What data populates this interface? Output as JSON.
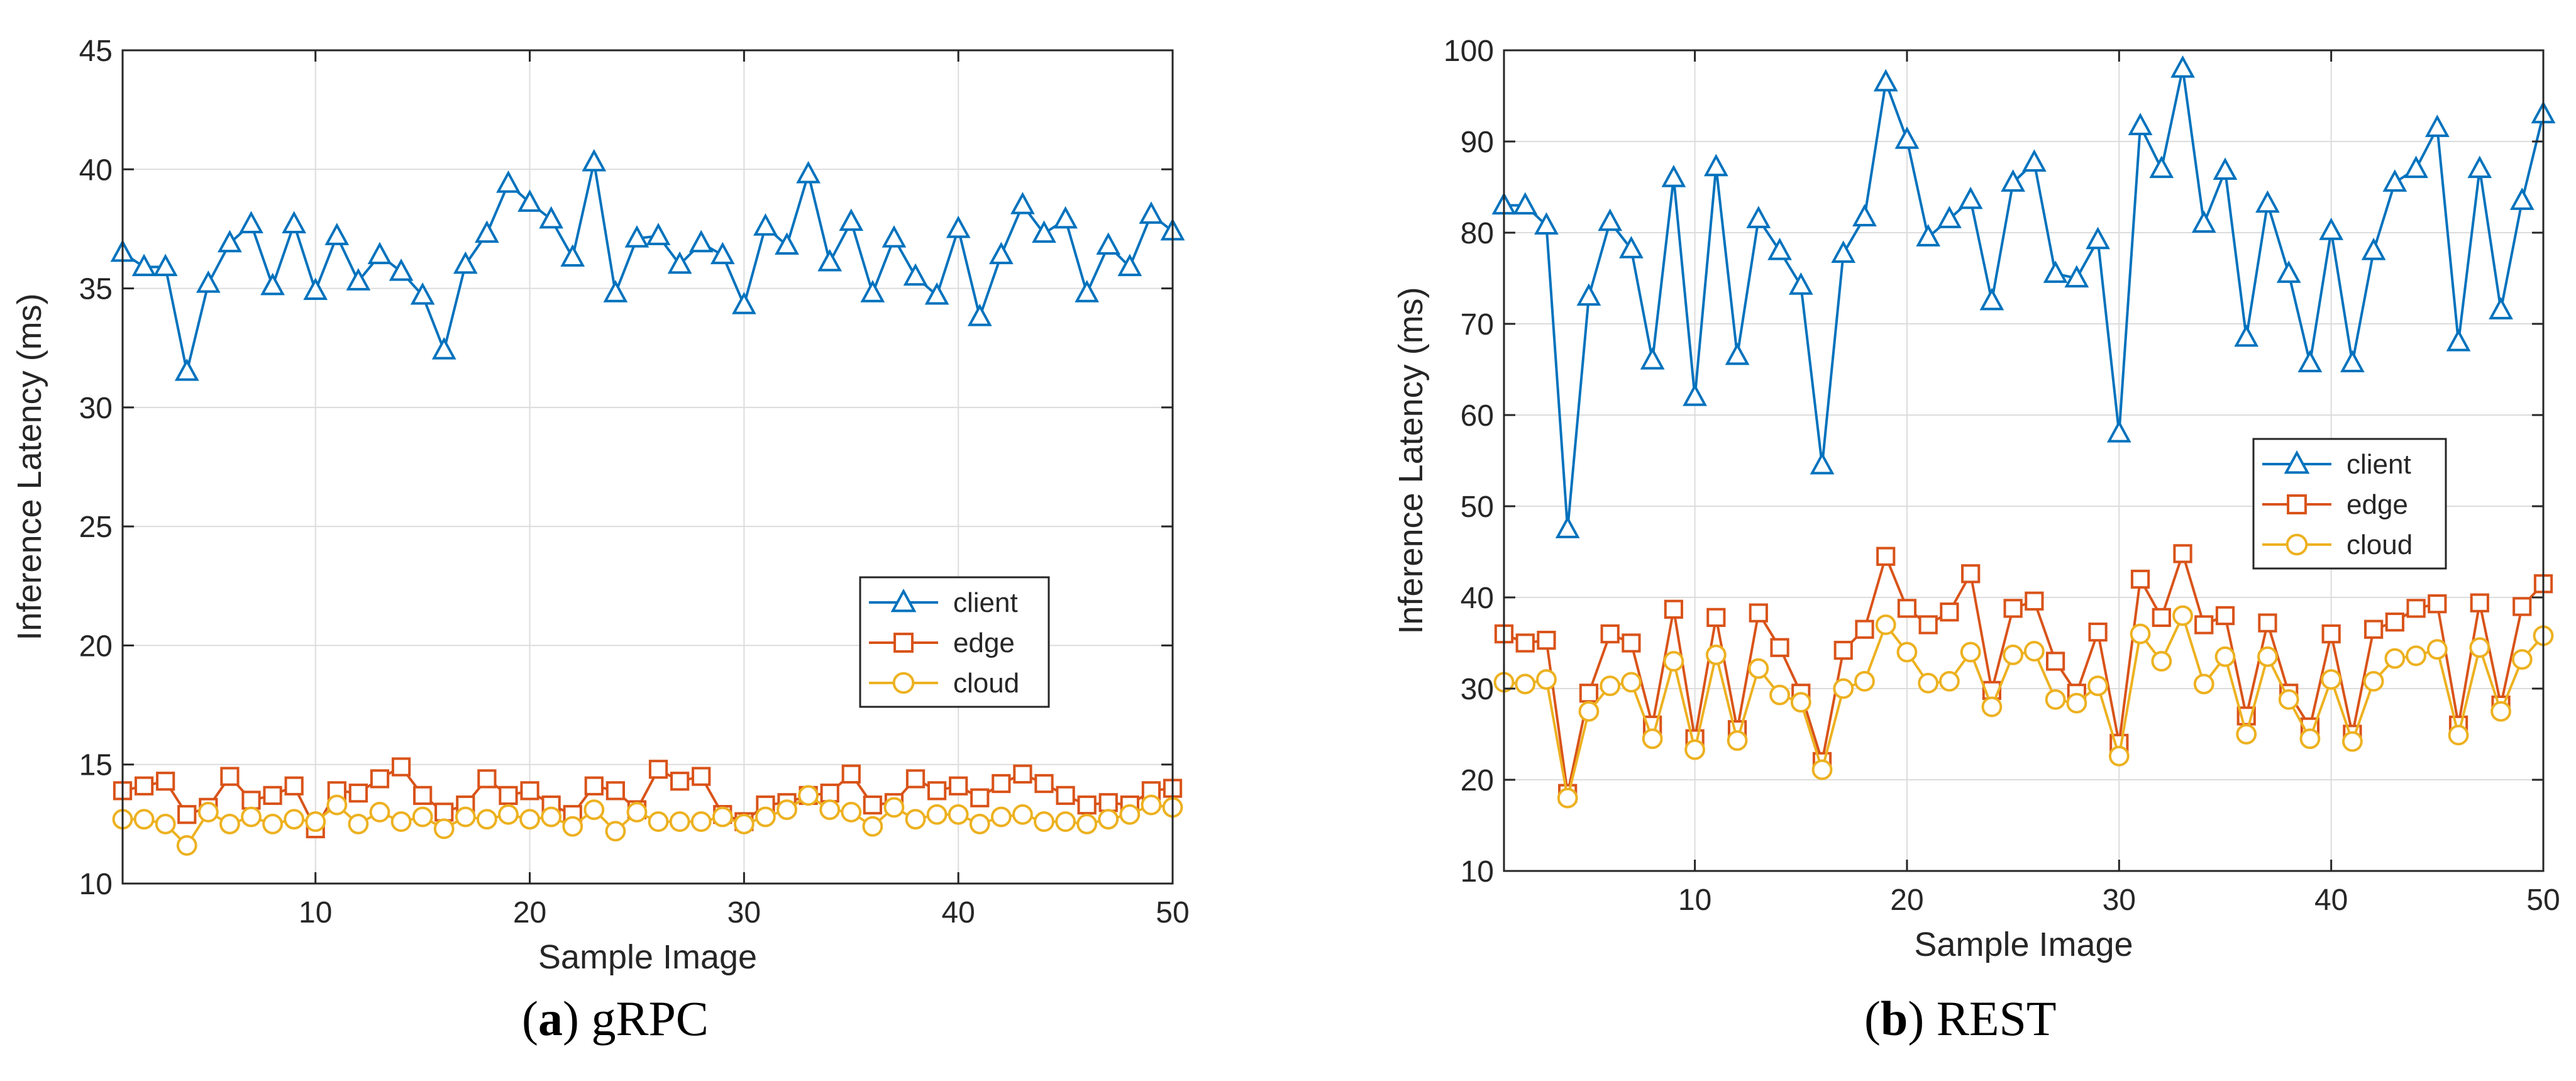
{
  "chart_data": [
    {
      "type": "line",
      "caption_letter": "a",
      "caption_text": "gRPC",
      "xlabel": "Sample Image",
      "ylabel": "Inference Latency (ms)",
      "xlim": [
        1,
        50
      ],
      "ylim": [
        10,
        45
      ],
      "xticks": [
        10,
        20,
        30,
        40,
        50
      ],
      "yticks": [
        10,
        15,
        20,
        25,
        30,
        35,
        40,
        45
      ],
      "grid": true,
      "legend_position": "lower-right",
      "x": [
        1,
        2,
        3,
        4,
        5,
        6,
        7,
        8,
        9,
        10,
        11,
        12,
        13,
        14,
        15,
        16,
        17,
        18,
        19,
        20,
        21,
        22,
        23,
        24,
        25,
        26,
        27,
        28,
        29,
        30,
        31,
        32,
        33,
        34,
        35,
        36,
        37,
        38,
        39,
        40,
        41,
        42,
        43,
        44,
        45,
        46,
        47,
        48,
        49,
        50
      ],
      "series": [
        {
          "name": "client",
          "color": "#0072BD",
          "marker": "triangle",
          "values": [
            36.5,
            35.9,
            35.9,
            31.5,
            35.2,
            36.9,
            37.7,
            35.1,
            37.7,
            34.9,
            37.2,
            35.3,
            36.4,
            35.7,
            34.7,
            32.4,
            36.0,
            37.3,
            39.4,
            38.6,
            37.9,
            36.3,
            40.3,
            34.8,
            37.1,
            37.2,
            36.0,
            36.9,
            36.4,
            34.3,
            37.6,
            36.8,
            39.8,
            36.1,
            37.8,
            34.8,
            37.1,
            35.5,
            34.7,
            37.5,
            33.8,
            36.4,
            38.5,
            37.3,
            37.9,
            34.8,
            36.8,
            35.9,
            38.1,
            37.4
          ]
        },
        {
          "name": "edge",
          "color": "#D95319",
          "marker": "square",
          "values": [
            13.9,
            14.1,
            14.3,
            12.9,
            13.2,
            14.5,
            13.5,
            13.7,
            14.1,
            12.3,
            13.9,
            13.8,
            14.4,
            14.9,
            13.7,
            13.0,
            13.3,
            14.4,
            13.7,
            13.9,
            13.3,
            12.9,
            14.1,
            13.9,
            13.1,
            14.8,
            14.3,
            14.5,
            12.9,
            12.6,
            13.3,
            13.4,
            13.7,
            13.8,
            14.6,
            13.3,
            13.4,
            14.4,
            13.9,
            14.1,
            13.6,
            14.2,
            14.6,
            14.2,
            13.7,
            13.3,
            13.4,
            13.3,
            13.9,
            14.0
          ]
        },
        {
          "name": "cloud",
          "color": "#EDB120",
          "marker": "circle",
          "values": [
            12.7,
            12.7,
            12.5,
            11.6,
            13.0,
            12.5,
            12.8,
            12.5,
            12.7,
            12.6,
            13.3,
            12.5,
            13.0,
            12.6,
            12.8,
            12.3,
            12.8,
            12.7,
            12.9,
            12.7,
            12.8,
            12.4,
            13.1,
            12.2,
            13.0,
            12.6,
            12.6,
            12.6,
            12.8,
            12.5,
            12.8,
            13.1,
            13.7,
            13.1,
            13.0,
            12.4,
            13.2,
            12.7,
            12.9,
            12.9,
            12.5,
            12.8,
            12.9,
            12.6,
            12.6,
            12.5,
            12.7,
            12.9,
            13.3,
            13.2
          ]
        }
      ]
    },
    {
      "type": "line",
      "caption_letter": "b",
      "caption_text": "REST",
      "xlabel": "Sample Image",
      "ylabel": "Inference Latency (ms)",
      "xlim": [
        1,
        50
      ],
      "ylim": [
        10,
        100
      ],
      "xticks": [
        10,
        20,
        30,
        40,
        50
      ],
      "yticks": [
        10,
        20,
        30,
        40,
        50,
        60,
        70,
        80,
        90,
        100
      ],
      "grid": true,
      "legend_position": "right",
      "x": [
        1,
        2,
        3,
        4,
        5,
        6,
        7,
        8,
        9,
        10,
        11,
        12,
        13,
        14,
        15,
        16,
        17,
        18,
        19,
        20,
        21,
        22,
        23,
        24,
        25,
        26,
        27,
        28,
        29,
        30,
        31,
        32,
        33,
        34,
        35,
        36,
        37,
        38,
        39,
        40,
        41,
        42,
        43,
        44,
        45,
        46,
        47,
        48,
        49,
        50
      ],
      "series": [
        {
          "name": "client",
          "color": "#0072BD",
          "marker": "triangle",
          "values": [
            83.0,
            83.0,
            80.8,
            47.5,
            73.0,
            81.2,
            78.2,
            66.0,
            86.0,
            62.0,
            87.2,
            66.5,
            81.5,
            78.0,
            74.2,
            54.5,
            77.7,
            81.7,
            96.5,
            90.2,
            79.5,
            81.5,
            83.6,
            72.5,
            85.5,
            87.7,
            75.5,
            75.0,
            79.2,
            58.0,
            91.7,
            87.0,
            98.0,
            81.0,
            86.8,
            68.5,
            83.2,
            75.5,
            65.7,
            80.2,
            65.7,
            78.0,
            85.5,
            87.0,
            91.5,
            68.0,
            87.0,
            71.5,
            83.5,
            93.0
          ]
        },
        {
          "name": "edge",
          "color": "#D95319",
          "marker": "square",
          "values": [
            36.0,
            35.0,
            35.3,
            18.5,
            29.5,
            36.0,
            35.0,
            26.0,
            38.7,
            24.5,
            37.8,
            25.5,
            38.3,
            34.5,
            29.5,
            22.0,
            34.2,
            36.5,
            44.5,
            38.8,
            37.0,
            38.4,
            42.6,
            29.8,
            38.8,
            39.6,
            33.0,
            29.5,
            36.2,
            24.0,
            42.0,
            37.8,
            44.8,
            37.0,
            38.0,
            27.0,
            37.2,
            29.5,
            25.8,
            36.0,
            25.0,
            36.5,
            37.3,
            38.8,
            39.3,
            26.0,
            39.4,
            28.2,
            39.0,
            41.5
          ]
        },
        {
          "name": "cloud",
          "color": "#EDB120",
          "marker": "circle",
          "values": [
            30.7,
            30.5,
            31.0,
            18.0,
            27.5,
            30.3,
            30.7,
            24.5,
            33.0,
            23.3,
            33.7,
            24.3,
            32.2,
            29.3,
            28.5,
            21.1,
            30.0,
            30.8,
            37.0,
            34.0,
            30.6,
            30.8,
            34.0,
            28.0,
            33.7,
            34.1,
            28.8,
            28.4,
            30.3,
            22.6,
            36.0,
            33.0,
            38.0,
            30.5,
            33.5,
            25.0,
            33.5,
            28.8,
            24.5,
            31.0,
            24.2,
            30.8,
            33.3,
            33.6,
            34.3,
            24.9,
            34.5,
            27.5,
            33.2,
            35.8
          ]
        }
      ]
    }
  ]
}
